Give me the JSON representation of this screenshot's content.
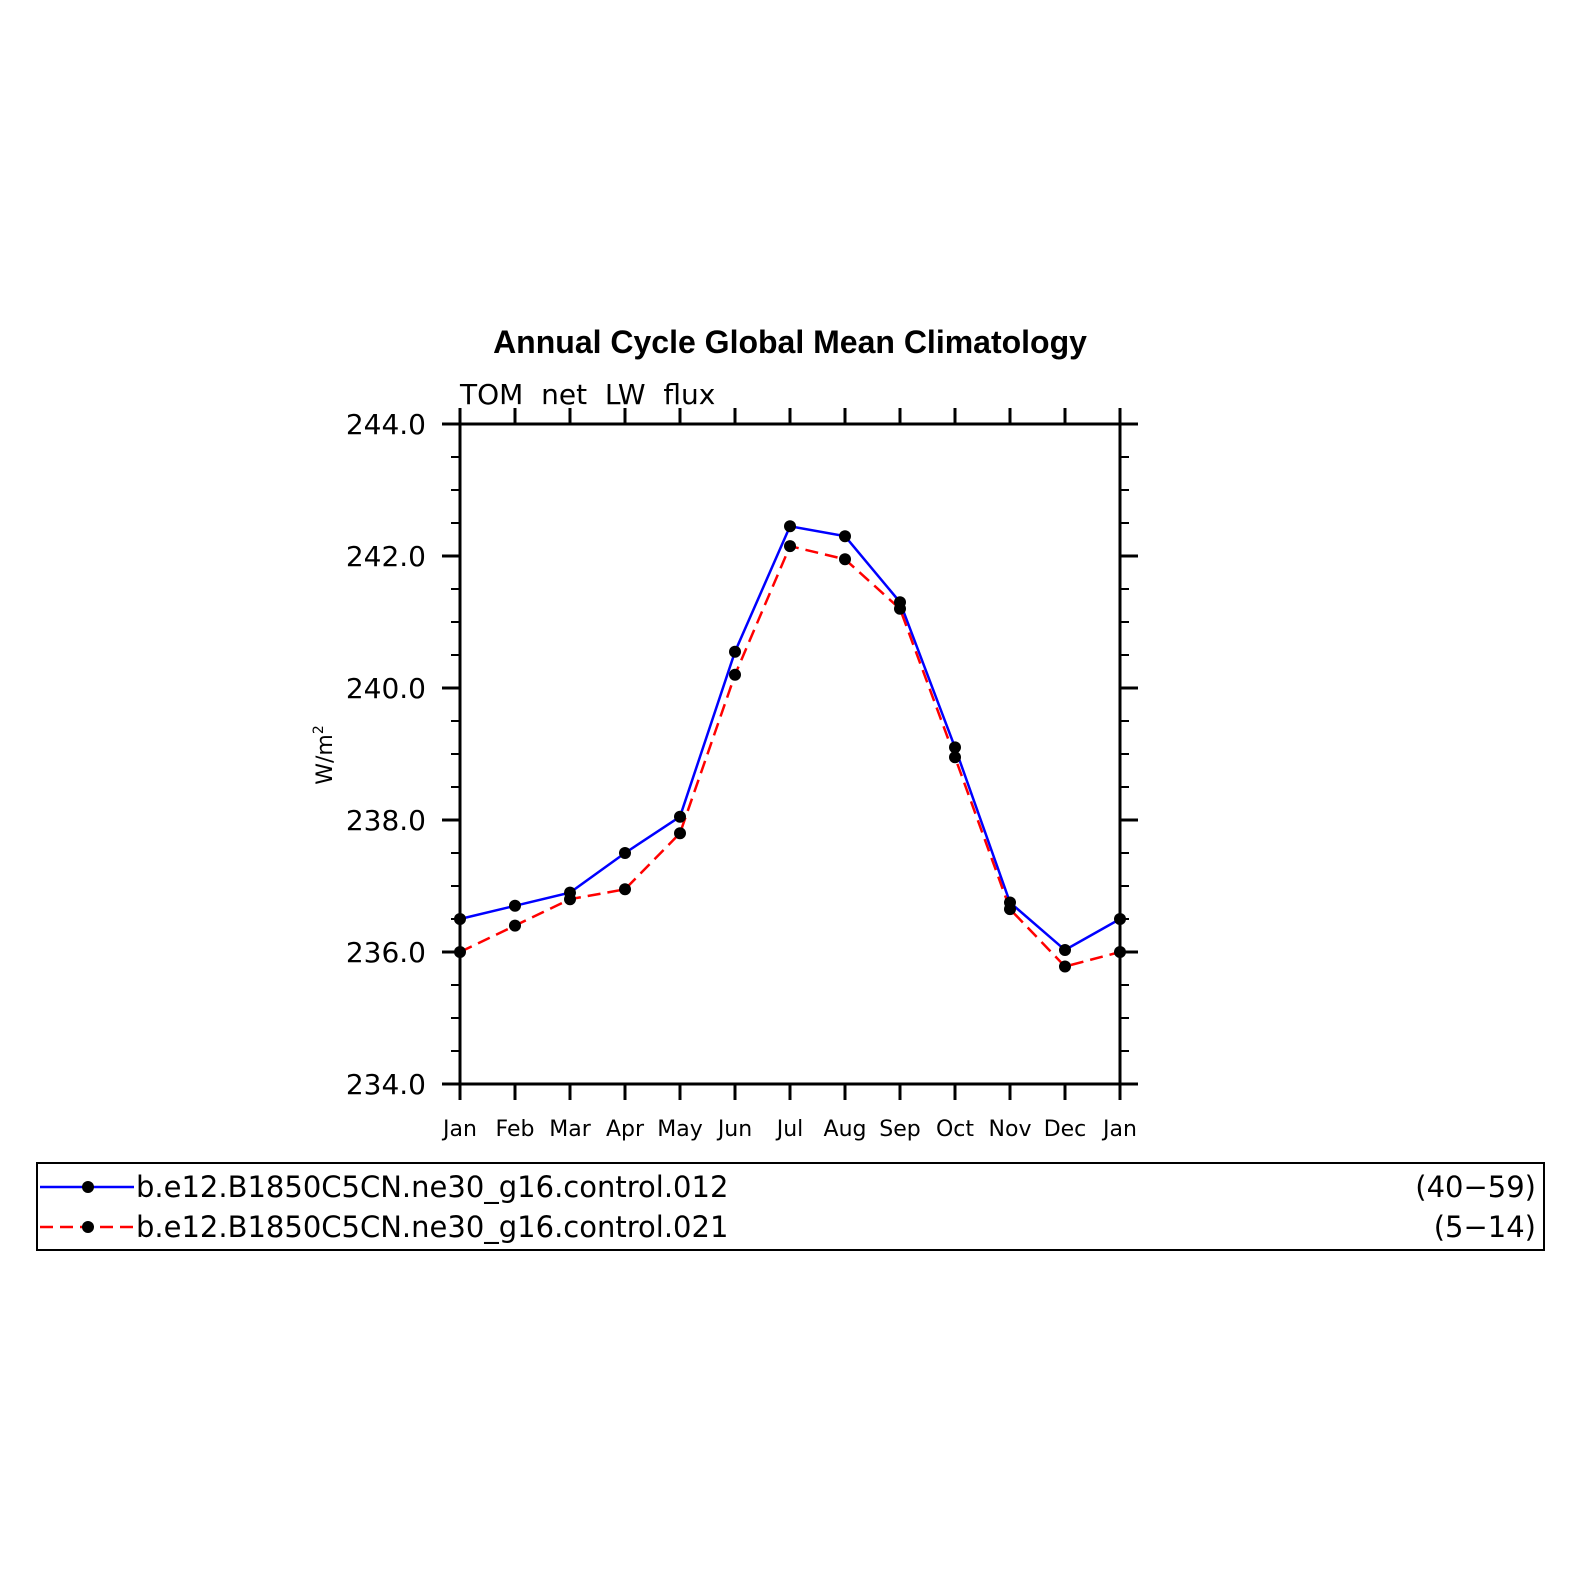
{
  "chart_data": {
    "type": "line",
    "title": "Annual Cycle Global Mean Climatology",
    "subtitle": "TOM  net  LW  flux",
    "ylabel_base": "W/m",
    "ylabel_sup": "2",
    "xlabel": "",
    "categories": [
      "Jan",
      "Feb",
      "Mar",
      "Apr",
      "May",
      "Jun",
      "Jul",
      "Aug",
      "Sep",
      "Oct",
      "Nov",
      "Dec",
      "Jan"
    ],
    "ylim": [
      234.0,
      244.0
    ],
    "yticks": [
      234.0,
      236.0,
      238.0,
      240.0,
      242.0,
      244.0
    ],
    "ytick_labels": [
      "234.0",
      "236.0",
      "238.0",
      "240.0",
      "242.0",
      "244.0"
    ],
    "grid": false,
    "legend_position": "bottom",
    "series": [
      {
        "name": "b.e12.B1850C5CN.ne30_g16.control.012",
        "years": "(40−59)",
        "color": "#0000ff",
        "dashed": false,
        "values": [
          236.5,
          236.7,
          236.9,
          237.5,
          238.05,
          240.55,
          242.45,
          242.3,
          241.3,
          239.1,
          236.75,
          236.03,
          236.5
        ]
      },
      {
        "name": "b.e12.B1850C5CN.ne30_g16.control.021",
        "years": "(5−14)",
        "color": "#ff0000",
        "dashed": true,
        "values": [
          236.0,
          236.4,
          236.8,
          236.95,
          237.8,
          240.2,
          242.15,
          241.95,
          241.2,
          238.95,
          236.65,
          235.78,
          236.0
        ]
      }
    ]
  }
}
